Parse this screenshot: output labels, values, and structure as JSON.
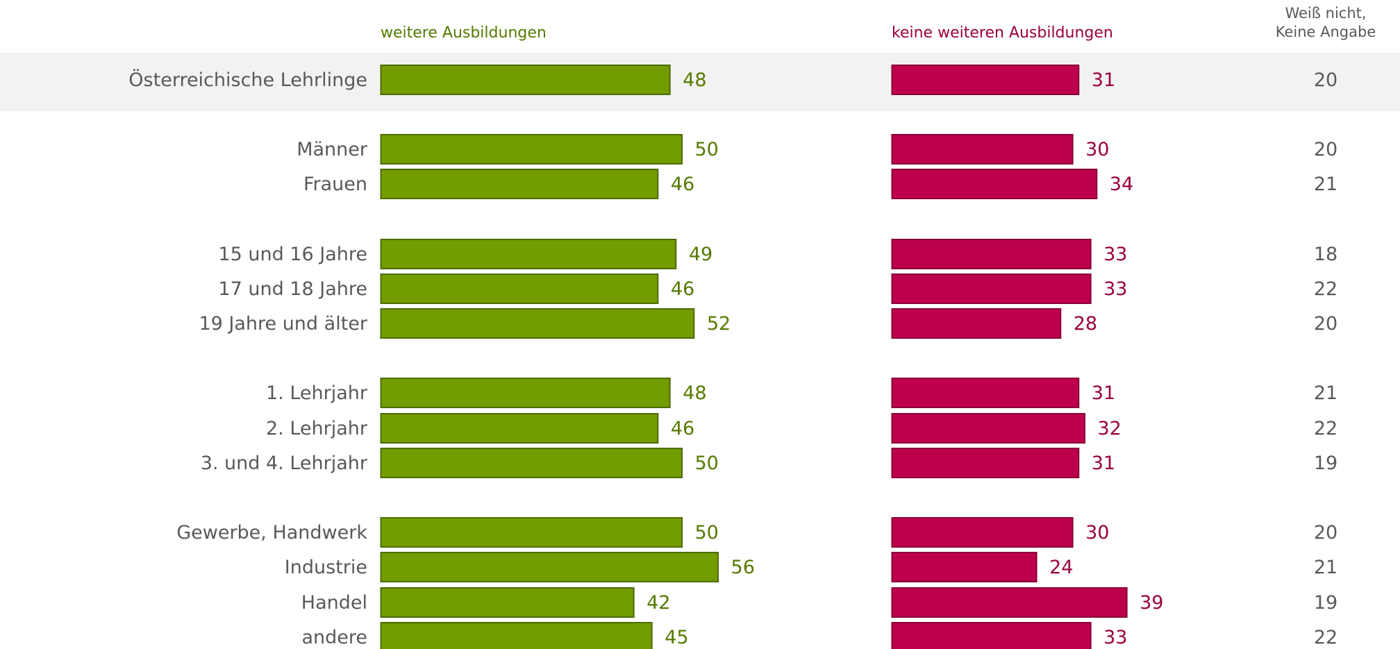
{
  "chart_data": {
    "type": "bar",
    "orientation": "horizontal",
    "headers": {
      "series_a": "weitere Ausbildungen",
      "series_b": "keine weiteren Ausbildungen",
      "series_c_line1": "Weiß nicht,",
      "series_c_line2": "Keine Angabe"
    },
    "categories": [
      "Österreichische Lehrlinge",
      "Männer",
      "Frauen",
      "15 und 16 Jahre",
      "17 und 18 Jahre",
      "19 Jahre und älter",
      "1. Lehrjahr",
      "2. Lehrjahr",
      "3. und 4. Lehrjahr",
      "Gewerbe, Handwerk",
      "Industrie",
      "Handel",
      "andere"
    ],
    "groups": [
      [
        0
      ],
      [
        1,
        2
      ],
      [
        3,
        4,
        5
      ],
      [
        6,
        7,
        8
      ],
      [
        9,
        10,
        11,
        12
      ]
    ],
    "highlighted_row": 0,
    "series": [
      {
        "name": "weitere Ausbildungen",
        "values": [
          48,
          50,
          46,
          49,
          46,
          52,
          48,
          46,
          50,
          50,
          56,
          42,
          45
        ]
      },
      {
        "name": "keine weiteren Ausbildungen",
        "values": [
          31,
          30,
          34,
          33,
          33,
          28,
          31,
          32,
          31,
          30,
          24,
          39,
          33
        ]
      },
      {
        "name": "Weiß nicht, Keine Angabe",
        "values": [
          20,
          20,
          21,
          18,
          22,
          20,
          21,
          22,
          19,
          20,
          21,
          19,
          22
        ]
      }
    ],
    "colors": {
      "series_a": "#729c00",
      "series_a_border": "#4d6b00",
      "series_a_text": "#557a00",
      "series_b": "#be004c",
      "series_b_border": "#8a0037",
      "series_b_text": "#9a003f",
      "label_text": "#595959",
      "highlight_band": "#f2f2f2"
    }
  }
}
